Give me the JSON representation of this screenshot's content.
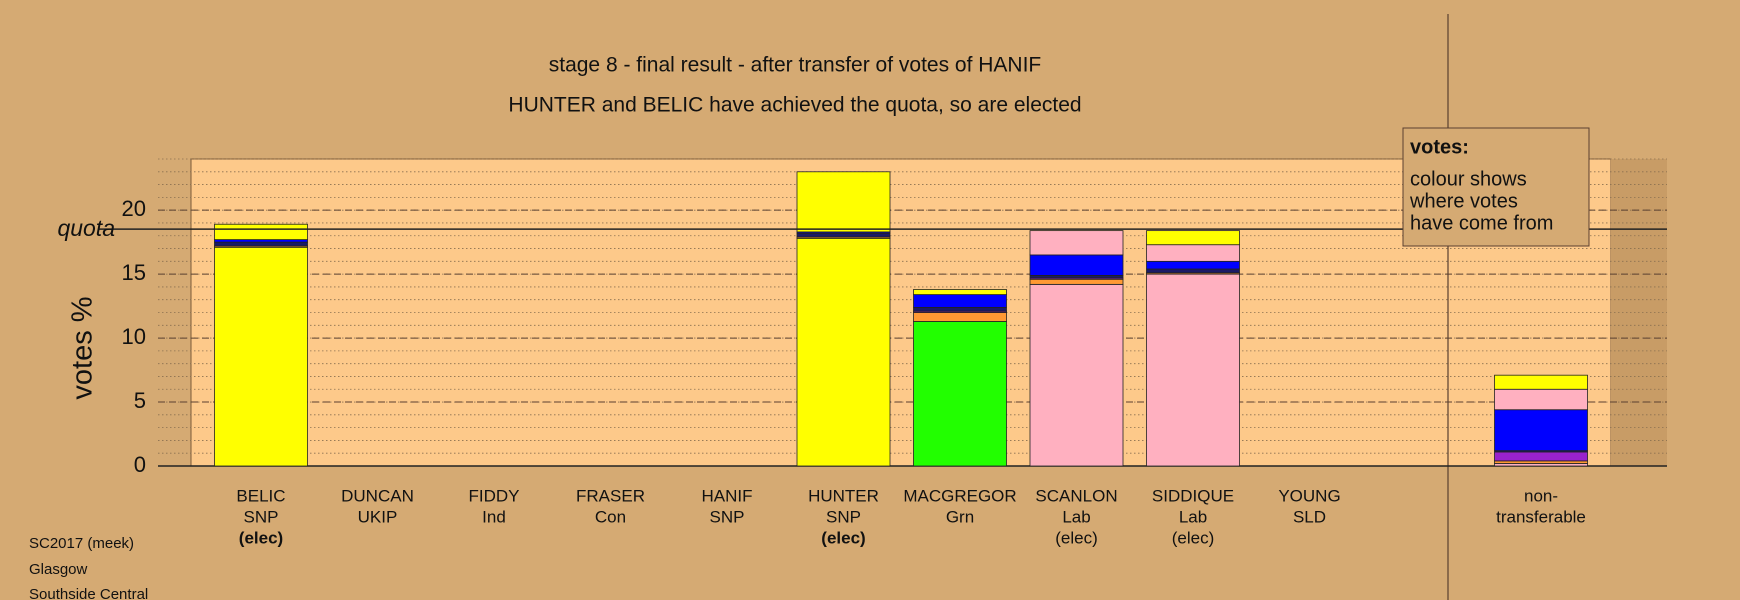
{
  "chart_data": {
    "type": "bar",
    "stacked": true,
    "title": "stage 8 - final result - after transfer of votes of HANIF",
    "subtitle": "HUNTER and BELIC have achieved the quota, so are elected",
    "y_label": "votes %",
    "categories": [
      "BELIC",
      "DUNCAN",
      "FIDDY",
      "FRASER",
      "HANIF",
      "HUNTER",
      "MACGREGOR",
      "SCANLON",
      "SIDDIQUE",
      "YOUNG",
      "non-"
    ],
    "parties": [
      "SNP",
      "UKIP",
      "Ind",
      "Con",
      "SNP",
      "SNP",
      "Grn",
      "Lab",
      "Lab",
      "SLD",
      "transferable"
    ],
    "status": [
      "(elec)",
      null,
      null,
      null,
      null,
      "(elec)",
      null,
      "(elec)",
      "(elec)",
      null,
      null
    ],
    "status_bold": [
      true,
      false,
      false,
      false,
      false,
      true,
      false,
      false,
      false,
      false,
      false
    ],
    "series": [
      {
        "color": "#ffff00",
        "values": [
          17.1,
          0,
          0,
          0,
          0,
          17.8,
          0,
          0,
          0,
          0,
          0
        ]
      },
      {
        "color": "#22ff00",
        "values": [
          0,
          0,
          0,
          0,
          0,
          0,
          11.3,
          0,
          0,
          0,
          0
        ]
      },
      {
        "color": "#ffb0c0",
        "values": [
          0,
          0,
          0,
          0,
          0,
          0,
          0,
          14.2,
          15.0,
          0,
          0.2
        ]
      },
      {
        "color": "#ff9933",
        "values": [
          0.1,
          0,
          0,
          0,
          0,
          0.1,
          0.7,
          0.4,
          0.1,
          0,
          0.2
        ]
      },
      {
        "color": "#9922cc",
        "values": [
          0,
          0,
          0,
          0,
          0,
          0,
          0.1,
          0.1,
          0,
          0,
          0.7
        ]
      },
      {
        "color": "#1a1a66",
        "values": [
          0.3,
          0,
          0,
          0,
          0,
          0.3,
          0.3,
          0.2,
          0.3,
          0,
          0.1
        ]
      },
      {
        "color": "#0000ff",
        "values": [
          0.2,
          0,
          0,
          0,
          0,
          0.1,
          1.0,
          1.6,
          0.6,
          0,
          3.2
        ]
      },
      {
        "color": "#ffb0c0",
        "values": [
          0,
          0,
          0,
          0,
          0,
          0,
          0,
          1.9,
          1.3,
          0,
          1.6
        ]
      },
      {
        "color": "#ffff00",
        "values": [
          1.2,
          0,
          0,
          0,
          0,
          4.7,
          0.4,
          0,
          1.1,
          0,
          1.1
        ]
      }
    ],
    "ylim": [
      0,
      24
    ],
    "yticks": [
      0,
      5,
      10,
      15,
      20
    ],
    "grid": true,
    "quota": 18.52,
    "quota_label": "quota",
    "note": {
      "title": "votes:",
      "lines": [
        "colour shows",
        "where votes",
        "have come from"
      ]
    },
    "footer": [
      "SC2017 (meek)",
      "Glasgow",
      "Southside Central"
    ]
  }
}
